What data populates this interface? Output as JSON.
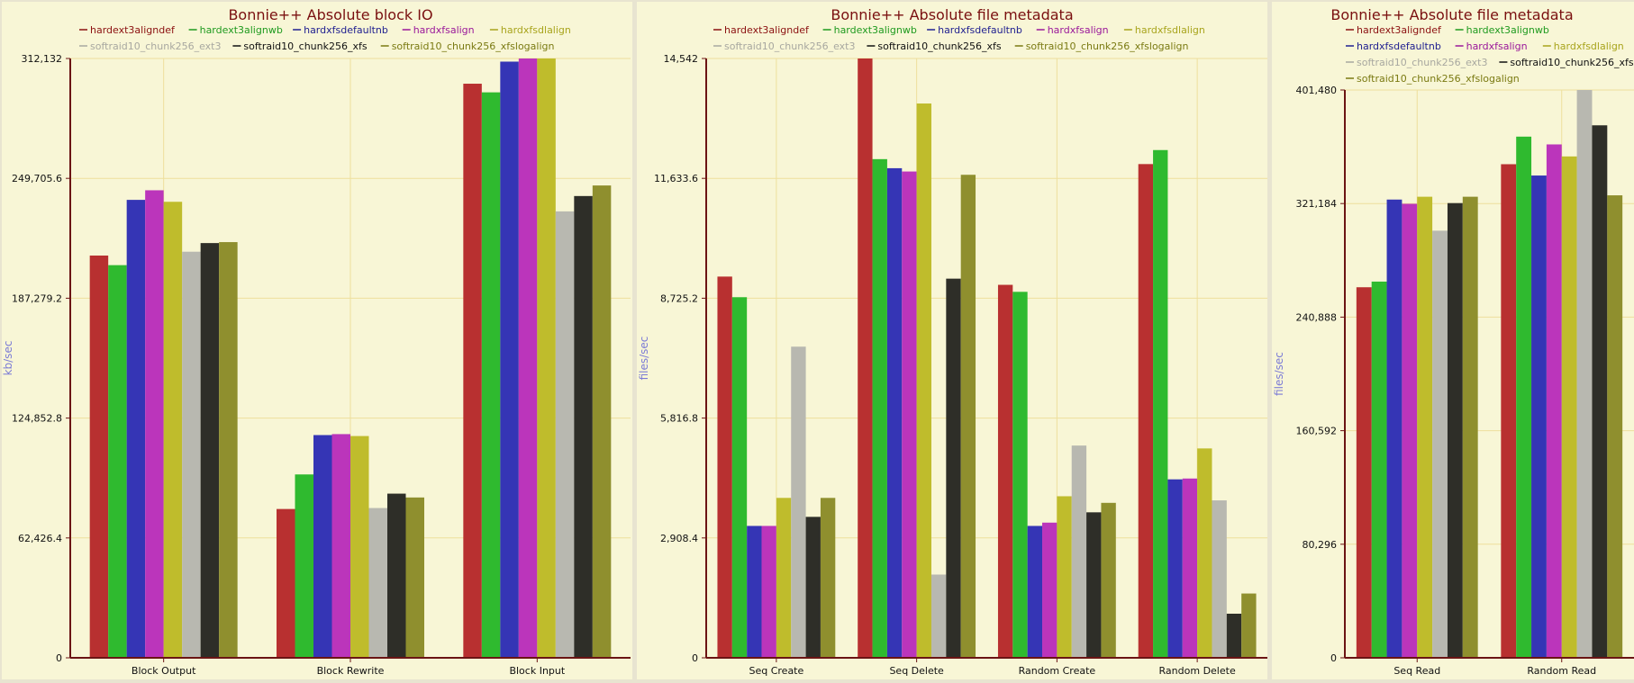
{
  "colors": {
    "panel_bg": "#f8f6d6",
    "axis": "#6b1414",
    "grid": "#eedf9c",
    "title": "#7a1010",
    "axis_label": "#7b7bd6"
  },
  "series_styles": [
    {
      "name": "hardext3aligndef",
      "color": "#b83030",
      "legend_color": "#8b1010"
    },
    {
      "name": "hardext3alignwb",
      "color": "#2fba2f",
      "legend_color": "#1e9a1e"
    },
    {
      "name": "hardxfsdefaultnb",
      "color": "#3535b5",
      "legend_color": "#202090"
    },
    {
      "name": "hardxfsalign",
      "color": "#bb35bb",
      "legend_color": "#9a189a"
    },
    {
      "name": "hardxfsdlalign",
      "color": "#bfbc2c",
      "legend_color": "#a8a41c"
    },
    {
      "name": "softraid10_chunk256_ext3",
      "color": "#b8b8b0",
      "legend_color": "#a8a8a0"
    },
    {
      "name": "softraid10_chunk256_xfs",
      "color": "#2e2e28",
      "legend_color": "#111111"
    },
    {
      "name": "softraid10_chunk256_xfslogalign",
      "color": "#8f8f2e",
      "legend_color": "#7a7a12"
    }
  ],
  "chart_data": [
    {
      "type": "bar",
      "title": "Bonnie++ Absolute block IO",
      "ylabel": "kb/sec",
      "xlabel": "",
      "ylim": [
        0,
        312132
      ],
      "yticks": [
        "0",
        "62,426.4",
        "124,852.8",
        "187,279.2",
        "249,705.6",
        "312,132"
      ],
      "grid": true,
      "legend_position": "top",
      "categories": [
        "Block Output",
        "Block Rewrite",
        "Block Input"
      ],
      "series": [
        {
          "name": "hardext3aligndef",
          "values": [
            209500,
            77500,
            299000
          ]
        },
        {
          "name": "hardext3alignwb",
          "values": [
            204500,
            95500,
            294500
          ]
        },
        {
          "name": "hardxfsdefaultnb",
          "values": [
            238500,
            116000,
            310500
          ]
        },
        {
          "name": "hardxfsalign",
          "values": [
            243500,
            116500,
            312132
          ]
        },
        {
          "name": "hardxfsdlalign",
          "values": [
            237500,
            115500,
            312132
          ]
        },
        {
          "name": "softraid10_chunk256_ext3",
          "values": [
            211500,
            78000,
            232500
          ]
        },
        {
          "name": "softraid10_chunk256_xfs",
          "values": [
            216000,
            85500,
            240500
          ]
        },
        {
          "name": "softraid10_chunk256_xfslogalign",
          "values": [
            216500,
            83500,
            246000
          ]
        }
      ]
    },
    {
      "type": "bar",
      "title": "Bonnie++ Absolute file metadata",
      "ylabel": "files/sec",
      "xlabel": "",
      "ylim": [
        0,
        14542
      ],
      "yticks": [
        "0",
        "2,908.4",
        "5,816.8",
        "8,725.2",
        "11,633.6",
        "14,542"
      ],
      "grid": true,
      "legend_position": "top",
      "categories": [
        "Seq Create",
        "Seq Delete",
        "Random Create",
        "Random Delete"
      ],
      "series": [
        {
          "name": "hardext3aligndef",
          "values": [
            9250,
            14542,
            9050,
            11980
          ]
        },
        {
          "name": "hardext3alignwb",
          "values": [
            8750,
            12100,
            8880,
            12320
          ]
        },
        {
          "name": "hardxfsdefaultnb",
          "values": [
            3200,
            11880,
            3200,
            4330
          ]
        },
        {
          "name": "hardxfsalign",
          "values": [
            3200,
            11800,
            3280,
            4350
          ]
        },
        {
          "name": "hardxfsdlalign",
          "values": [
            3880,
            13450,
            3920,
            5080
          ]
        },
        {
          "name": "softraid10_chunk256_ext3",
          "values": [
            7550,
            2020,
            5150,
            3820
          ]
        },
        {
          "name": "softraid10_chunk256_xfs",
          "values": [
            3420,
            9200,
            3530,
            1070
          ]
        },
        {
          "name": "softraid10_chunk256_xfslogalign",
          "values": [
            3880,
            11720,
            3760,
            1560
          ]
        }
      ]
    },
    {
      "type": "bar",
      "title": "Bonnie++ Absolute file metadata",
      "ylabel": "files/sec",
      "xlabel": "",
      "ylim": [
        0,
        401480
      ],
      "yticks": [
        "0",
        "80,296",
        "160,592",
        "240,888",
        "321,184",
        "401,480"
      ],
      "grid": true,
      "legend_position": "top",
      "categories": [
        "Seq Read",
        "Random Read"
      ],
      "series": [
        {
          "name": "hardext3aligndef",
          "values": [
            262000,
            349000
          ]
        },
        {
          "name": "hardext3alignwb",
          "values": [
            266000,
            368500
          ]
        },
        {
          "name": "hardxfsdefaultnb",
          "values": [
            324000,
            341000
          ]
        },
        {
          "name": "hardxfsalign",
          "values": [
            321000,
            363000
          ]
        },
        {
          "name": "hardxfsdlalign",
          "values": [
            326000,
            354500
          ]
        },
        {
          "name": "softraid10_chunk256_ext3",
          "values": [
            302000,
            401480
          ]
        },
        {
          "name": "softraid10_chunk256_xfs",
          "values": [
            321500,
            376500
          ]
        },
        {
          "name": "softraid10_chunk256_xfslogalign",
          "values": [
            326000,
            327000
          ]
        }
      ]
    }
  ]
}
